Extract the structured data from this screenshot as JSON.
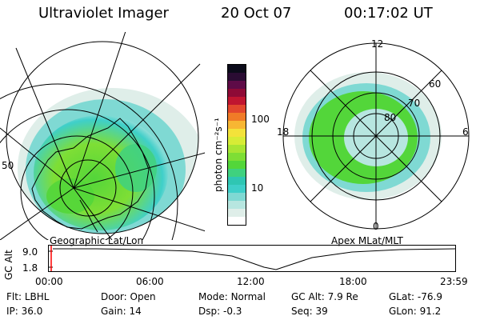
{
  "header": {
    "instrument": "Ultraviolet Imager",
    "date": "20 Oct 07",
    "time": "00:17:02 UT"
  },
  "left_panel": {
    "caption": "Geographic Lat/Lon",
    "side_label": "50"
  },
  "right_panel": {
    "caption": "Apex MLat/MLT",
    "mlt_labels": {
      "top": "12",
      "left": "18",
      "right": "6",
      "bottom": "0"
    },
    "mlat_labels": [
      "60",
      "70",
      "80"
    ]
  },
  "colorbar": {
    "unit_label": "photon cm⁻²s⁻¹",
    "ticks": [
      {
        "label": "100",
        "value": 100
      },
      {
        "label": "10",
        "value": 10
      }
    ],
    "colors": [
      "#ffffff",
      "#dfeee9",
      "#b7e6e0",
      "#7fd9d3",
      "#3fcfc9",
      "#2fc6b3",
      "#3fd17f",
      "#53d63a",
      "#7ede35",
      "#a9e533",
      "#d7ec36",
      "#f3e23a",
      "#f7b633",
      "#f07b27",
      "#e2472d",
      "#c01530",
      "#8e0a36",
      "#5e0b47",
      "#2a0c33",
      "#0b0b1a"
    ]
  },
  "timeline": {
    "ylabel": "GC Alt",
    "ymax_label": "9.0",
    "ymin_label": "1.8",
    "ticks": [
      "00:00",
      "06:00",
      "12:00",
      "18:00",
      "23:59"
    ]
  },
  "info": {
    "filter": {
      "label": "Flt:",
      "value": "LBHL"
    },
    "ip": {
      "label": "IP:",
      "value": "36.0"
    },
    "door": {
      "label": "Door:",
      "value": "Open"
    },
    "gain": {
      "label": "Gain:",
      "value": "14"
    },
    "mode": {
      "label": "Mode:",
      "value": "Normal"
    },
    "dsp": {
      "label": "Dsp:",
      "value": "-0.3"
    },
    "gcalt": {
      "label": "GC Alt:",
      "value": "7.9 Re"
    },
    "seq": {
      "label": "Seq:",
      "value": "39"
    },
    "glat": {
      "label": "GLat:",
      "value": "-76.9"
    },
    "glon": {
      "label": "GLon:",
      "value": "91.2"
    }
  }
}
